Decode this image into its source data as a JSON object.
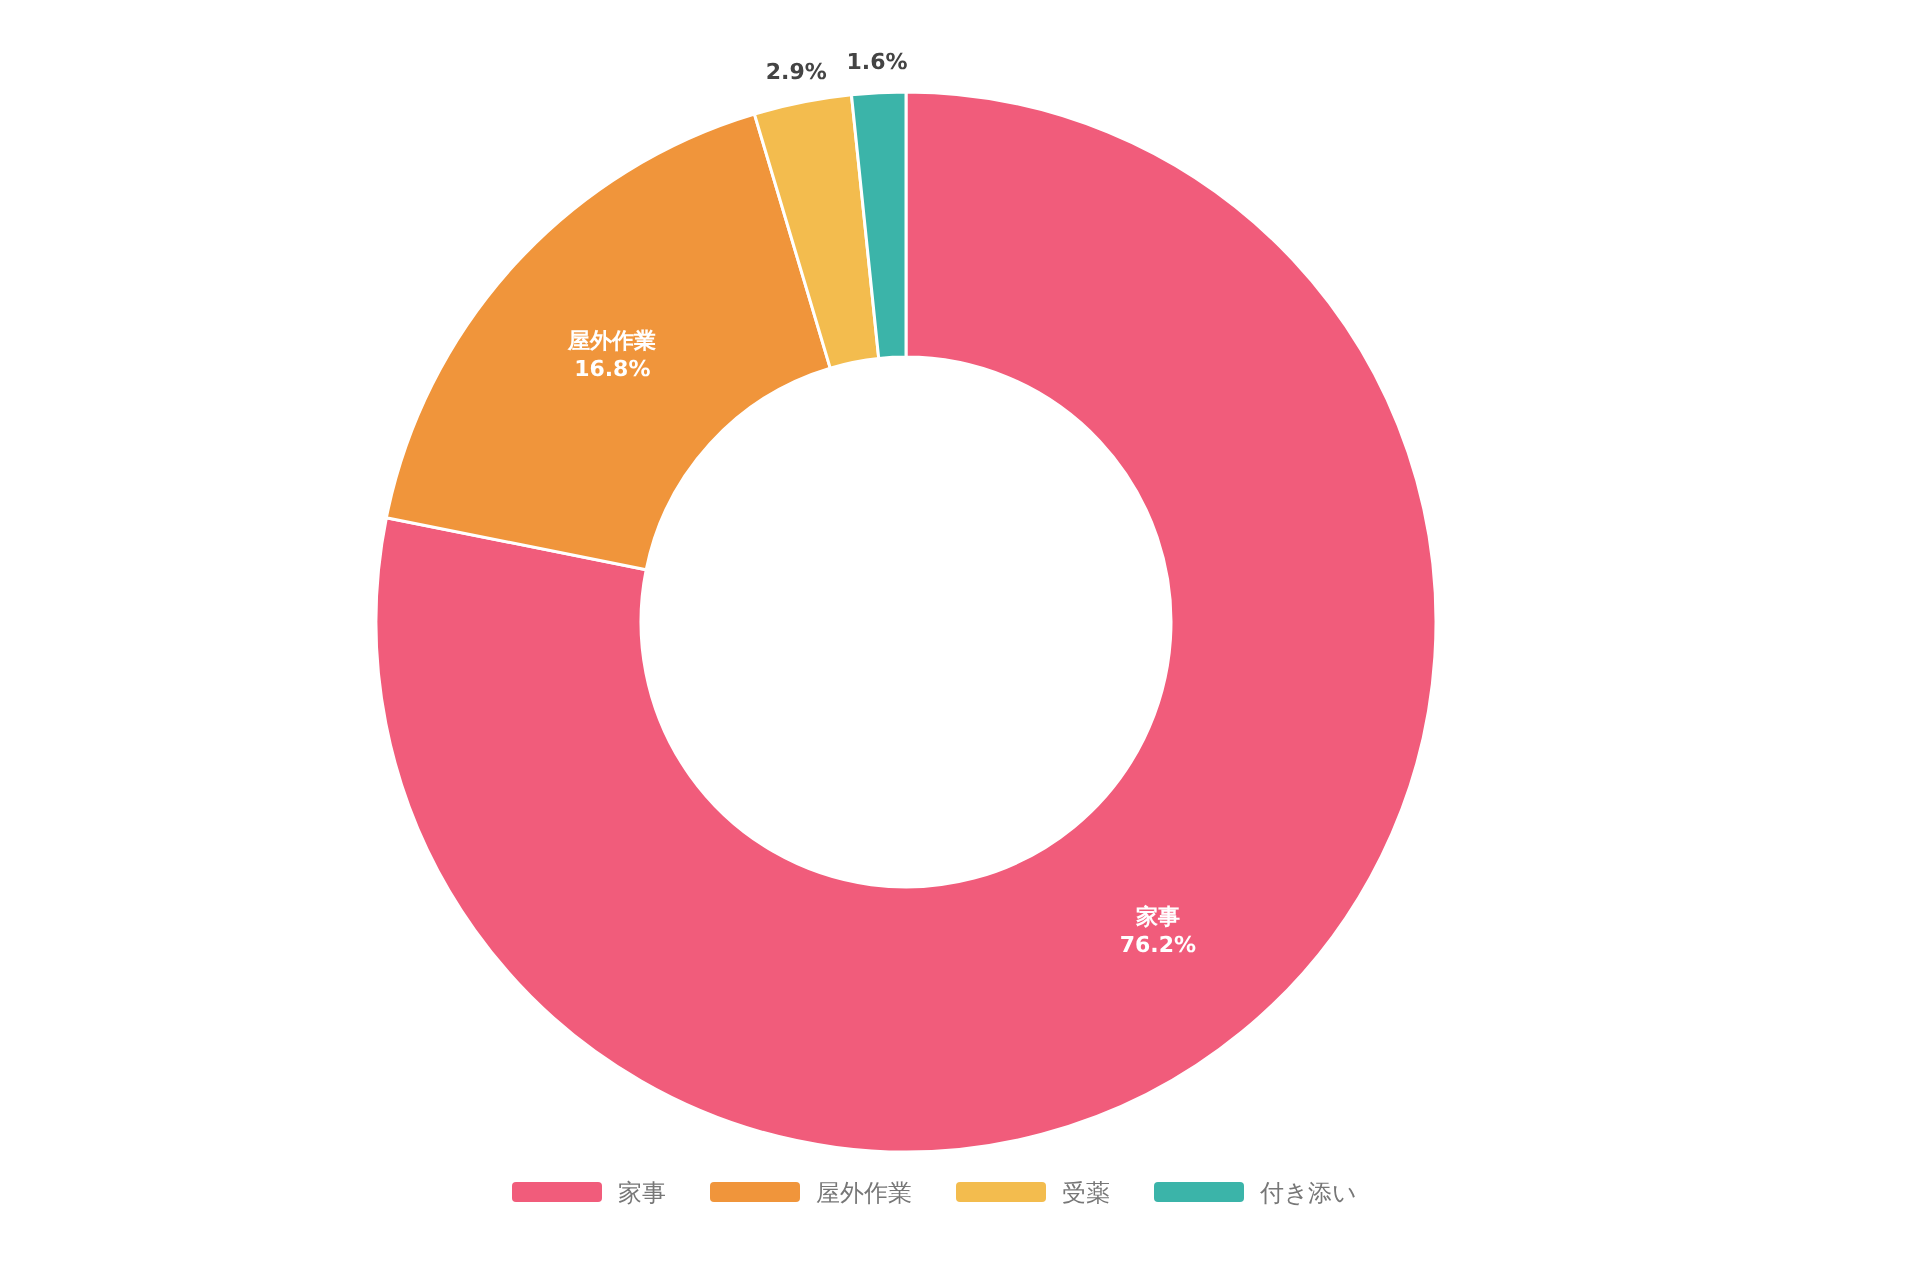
{
  "chart_data": {
    "type": "donut",
    "categories": [
      "家事",
      "屋外作業",
      "受薬",
      "付き添い"
    ],
    "values": [
      76.2,
      16.8,
      2.9,
      1.6
    ],
    "value_labels": [
      "76.2%",
      "16.8%",
      "2.9%",
      "1.6%"
    ],
    "colors": [
      "#f15c7b",
      "#f0953b",
      "#f3bc4e",
      "#3bb4a9"
    ],
    "legend": "bottom"
  }
}
